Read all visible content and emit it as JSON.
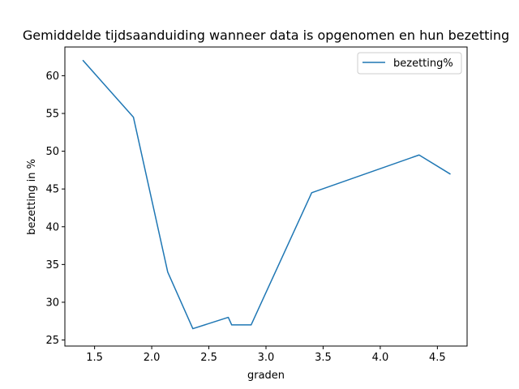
{
  "chart_data": {
    "type": "line",
    "title": "Gemiddelde tijdsaanduiding wanneer data is opgenomen en hun bezetting",
    "xlabel": "graden",
    "ylabel": "bezetting in %",
    "xlim": [
      1.24,
      4.76
    ],
    "ylim": [
      24.2,
      63.8
    ],
    "xticks": [
      1.5,
      2.0,
      2.5,
      3.0,
      3.5,
      4.0,
      4.5
    ],
    "xtick_labels": [
      "1.5",
      "2.0",
      "2.5",
      "3.0",
      "3.5",
      "4.0",
      "4.5"
    ],
    "yticks": [
      25,
      30,
      35,
      40,
      45,
      50,
      55,
      60
    ],
    "ytick_labels": [
      "25",
      "30",
      "35",
      "40",
      "45",
      "50",
      "55",
      "60"
    ],
    "grid": false,
    "legend_position": "top-right",
    "series": [
      {
        "name": "bezetting%",
        "color": "#1f77b4",
        "x": [
          1.4,
          1.84,
          2.14,
          2.36,
          2.67,
          2.7,
          2.87,
          3.4,
          4.34,
          4.61
        ],
        "y": [
          62.0,
          54.5,
          34.0,
          26.5,
          28.0,
          27.0,
          27.0,
          44.5,
          49.5,
          47.0
        ]
      }
    ]
  }
}
